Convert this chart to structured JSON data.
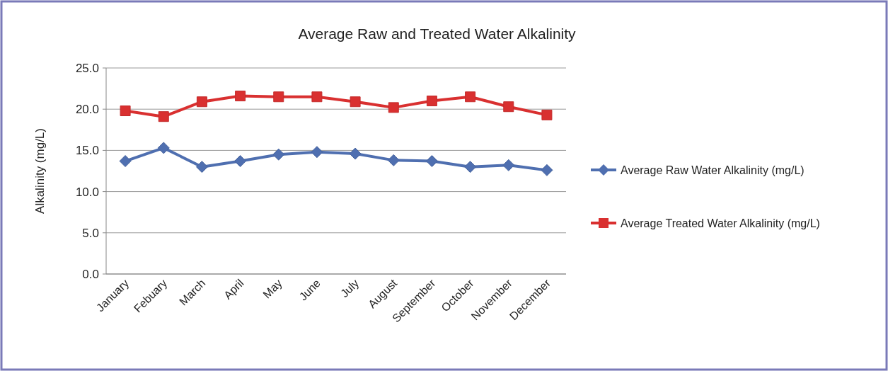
{
  "chart_data": {
    "type": "line",
    "title": "Average Raw and Treated Water Alkalinity",
    "ylabel": "Alkalinity (mg/L)",
    "categories": [
      "January",
      "Febuary",
      "March",
      "April",
      "May",
      "June",
      "July",
      "August",
      "September",
      "October",
      "November",
      "December"
    ],
    "series": [
      {
        "name": "Average Raw Water Alkalinity (mg/L)",
        "color": "#4f6fb0",
        "marker": "diamond",
        "values": [
          13.7,
          15.3,
          13.0,
          13.7,
          14.5,
          14.8,
          14.6,
          13.8,
          13.7,
          13.0,
          13.2,
          12.6
        ]
      },
      {
        "name": "Average Treated Water Alkalinity (mg/L)",
        "color": "#d93030",
        "marker": "square",
        "values": [
          19.8,
          19.1,
          20.9,
          21.6,
          21.5,
          21.5,
          20.9,
          20.2,
          21.0,
          21.5,
          20.3,
          19.3
        ]
      }
    ],
    "ylim": [
      0,
      25
    ],
    "yticks": [
      {
        "value": 0,
        "label": "0.0"
      },
      {
        "value": 5,
        "label": "5.0"
      },
      {
        "value": 10,
        "label": "10.0"
      },
      {
        "value": 15,
        "label": "15.0"
      },
      {
        "value": 20,
        "label": "20.0"
      },
      {
        "value": 25,
        "label": "25.0"
      }
    ],
    "grid": "y",
    "legend": "right"
  }
}
